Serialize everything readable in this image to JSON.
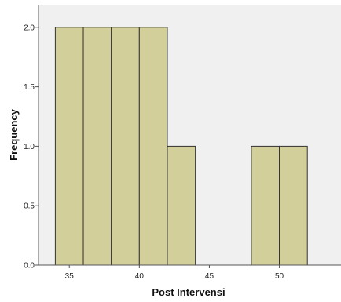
{
  "chart_data": {
    "type": "bar",
    "title": "",
    "xlabel": "Post Intervensi",
    "ylabel": "Frequency",
    "bins": [
      {
        "start": 34,
        "end": 36,
        "count": 2
      },
      {
        "start": 36,
        "end": 38,
        "count": 2
      },
      {
        "start": 38,
        "end": 40,
        "count": 2
      },
      {
        "start": 40,
        "end": 42,
        "count": 2
      },
      {
        "start": 42,
        "end": 44,
        "count": 1
      },
      {
        "start": 48,
        "end": 50,
        "count": 1
      },
      {
        "start": 50,
        "end": 52,
        "count": 1
      }
    ],
    "xticks": [
      35,
      40,
      45,
      50
    ],
    "xtick_labels": [
      "35",
      "40",
      "45",
      "50"
    ],
    "yticks": [
      0,
      0.5,
      1.0,
      1.5,
      2.0
    ],
    "ytick_labels": [
      "0.0",
      "0.5",
      "1.0",
      "1.5",
      "2.0"
    ],
    "xlim": [
      32.8,
      54.4
    ],
    "ylim": [
      0,
      2.19
    ],
    "grid": false,
    "colors": {
      "bar_fill": "#d3cf9a",
      "bar_stroke": "#333333",
      "plot_background": "#f0f0f0"
    }
  }
}
